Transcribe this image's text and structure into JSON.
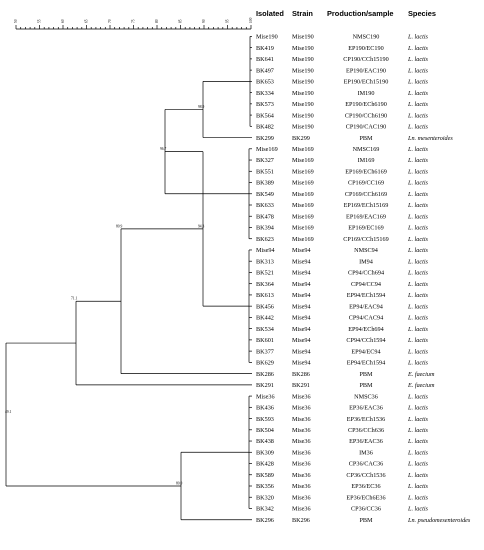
{
  "header": {
    "isolated": "Isolated",
    "strain": "Strain",
    "production": "Production/sample",
    "species": "Species"
  },
  "scale_ticks": [
    "50",
    "55",
    "60",
    "65",
    "70",
    "75",
    "80",
    "85",
    "90",
    "95",
    "100"
  ],
  "rows": [
    {
      "isolated": "Mise190",
      "strain": "Mise190",
      "sample": "NMSC190",
      "species": "L. lactis"
    },
    {
      "isolated": "BK419",
      "strain": "Mise190",
      "sample": "EP190/EC190",
      "species": "L. lactis"
    },
    {
      "isolated": "BK641",
      "strain": "Mise190",
      "sample": "CP190/CCh15190",
      "species": "L. lactis"
    },
    {
      "isolated": "BK497",
      "strain": "Mise190",
      "sample": "EP190/EAC190",
      "species": "L. lactis"
    },
    {
      "isolated": "BK653",
      "strain": "Mise190",
      "sample": "EP190/ECh15190",
      "species": "L. lactis"
    },
    {
      "isolated": "BK334",
      "strain": "Mise190",
      "sample": "IM190",
      "species": "L. lactis"
    },
    {
      "isolated": "BK573",
      "strain": "Mise190",
      "sample": "EP190/ECh6190",
      "species": "L. lactis"
    },
    {
      "isolated": "BK564",
      "strain": "Mise190",
      "sample": "CP190/CCh6190",
      "species": "L. lactis"
    },
    {
      "isolated": "BK482",
      "strain": "Mise190",
      "sample": "CP190/CAC190",
      "species": "L. lactis"
    },
    {
      "isolated": "BK299",
      "strain": "BK299",
      "sample": "PBM",
      "species": "Ln. mesenteroides"
    },
    {
      "isolated": "Mise169",
      "strain": "Mise169",
      "sample": "NMSC169",
      "species": "L. lactis"
    },
    {
      "isolated": "BK327",
      "strain": "Mise169",
      "sample": "IM169",
      "species": "L. lactis"
    },
    {
      "isolated": "BK551",
      "strain": "Mise169",
      "sample": "EP169/ECh6169",
      "species": "L. lactis"
    },
    {
      "isolated": "BK389",
      "strain": "Mise169",
      "sample": "CP169/CC169",
      "species": "L. lactis"
    },
    {
      "isolated": "BK549",
      "strain": "Mise169",
      "sample": "CP169/CCh6169",
      "species": "L. lactis"
    },
    {
      "isolated": "BK633",
      "strain": "Mise169",
      "sample": "EP169/ECh15169",
      "species": "L. lactis"
    },
    {
      "isolated": "BK478",
      "strain": "Mise169",
      "sample": "EP169/EAC169",
      "species": "L. lactis"
    },
    {
      "isolated": "BK394",
      "strain": "Mise169",
      "sample": "EP169/EC169",
      "species": "L. lactis"
    },
    {
      "isolated": "BK623",
      "strain": "Mise169",
      "sample": "CP169/CCh15169",
      "species": "L. lactis"
    },
    {
      "isolated": "Mise94",
      "strain": "Mise94",
      "sample": "NMSC94",
      "species": "L. lactis"
    },
    {
      "isolated": "BK313",
      "strain": "Mise94",
      "sample": "IM94",
      "species": "L. lactis"
    },
    {
      "isolated": "BK521",
      "strain": "Mise94",
      "sample": "CP94/CCh694",
      "species": "L. lactis"
    },
    {
      "isolated": "BK364",
      "strain": "Mise94",
      "sample": "CP94/CC94",
      "species": "L. lactis"
    },
    {
      "isolated": "BK613",
      "strain": "Mise94",
      "sample": "EP94/ECh1594",
      "species": "L. lactis"
    },
    {
      "isolated": "BK456",
      "strain": "Mise94",
      "sample": "EP94/EAC94",
      "species": "L. lactis"
    },
    {
      "isolated": "BK442",
      "strain": "Mise94",
      "sample": "CP94/CAC94",
      "species": "L. lactis"
    },
    {
      "isolated": "BK534",
      "strain": "Mise94",
      "sample": "EP94/ECh694",
      "species": "L. lactis"
    },
    {
      "isolated": "BK601",
      "strain": "Mise94",
      "sample": "CP94/CCh1594",
      "species": "L. lactis"
    },
    {
      "isolated": "BK377",
      "strain": "Mise94",
      "sample": "EP94/EC94",
      "species": "L. lactis"
    },
    {
      "isolated": "BK629",
      "strain": "Mise94",
      "sample": "EP94/ECh1594",
      "species": "L. lactis"
    },
    {
      "isolated": "BK286",
      "strain": "BK286",
      "sample": "PBM",
      "species": "E. faecium"
    },
    {
      "isolated": "BK291",
      "strain": "BK291",
      "sample": "PBM",
      "species": "E. faecium"
    },
    {
      "isolated": "Mise36",
      "strain": "Mise36",
      "sample": "NMSC36",
      "species": "L. lactis"
    },
    {
      "isolated": "BK436",
      "strain": "Mise36",
      "sample": "EP36/EAC36",
      "species": "L. lactis"
    },
    {
      "isolated": "BK593",
      "strain": "Mise36",
      "sample": "EP36/ECh1536",
      "species": "L. lactis"
    },
    {
      "isolated": "BK504",
      "strain": "Mise36",
      "sample": "CP36/CCh636",
      "species": "L. lactis"
    },
    {
      "isolated": "BK438",
      "strain": "Mise36",
      "sample": "EP36/EAC36",
      "species": "L. lactis"
    },
    {
      "isolated": "BK309",
      "strain": "Mise36",
      "sample": "IM36",
      "species": "L. lactis"
    },
    {
      "isolated": "BK428",
      "strain": "Mise36",
      "sample": "CP36/CAC36",
      "species": "L. lactis"
    },
    {
      "isolated": "BK589",
      "strain": "Mise36",
      "sample": "CP36/CCh1536",
      "species": "L. lactis"
    },
    {
      "isolated": "BK356",
      "strain": "Mise36",
      "sample": "EP36/EC36",
      "species": "L. lactis"
    },
    {
      "isolated": "BK320",
      "strain": "Mise36",
      "sample": "EP36/ECh6E36",
      "species": "L. lactis"
    },
    {
      "isolated": "BK342",
      "strain": "Mise36",
      "sample": "CP36/CC36",
      "species": "L. lactis"
    },
    {
      "isolated": "BK296",
      "strain": "BK296",
      "sample": "PBM",
      "species": "Ln. pseudomesenteroides"
    }
  ],
  "node_labels": [
    "98.9",
    "96.7",
    "80.9",
    "94.3",
    "71.1",
    "49.1",
    "80.0"
  ],
  "colors": {
    "line": "#000000",
    "background": "#ffffff"
  }
}
